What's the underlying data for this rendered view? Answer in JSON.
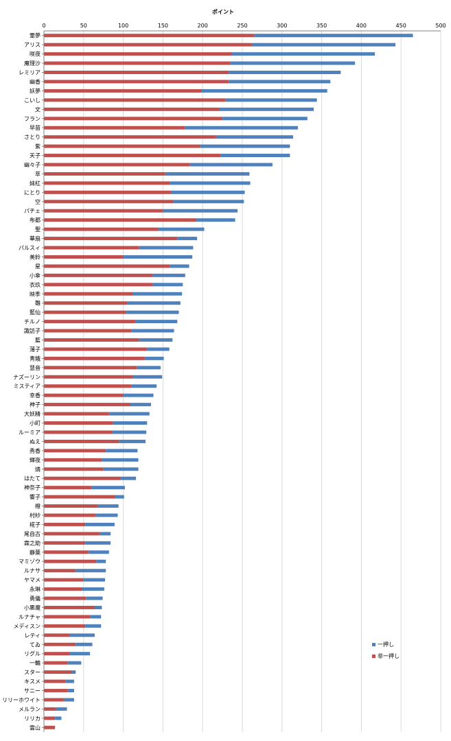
{
  "chart_data": {
    "type": "bar",
    "orientation": "horizontal",
    "stacked": true,
    "title": "ポイント",
    "xlim": [
      0,
      500
    ],
    "xticks": [
      "0",
      "50",
      "100",
      "150",
      "200",
      "250",
      "300",
      "350",
      "400",
      "450",
      "500"
    ],
    "grid": true,
    "legend": "right",
    "categories": [
      "霊夢",
      "アリス",
      "咲夜",
      "魔理沙",
      "レミリア",
      "幽香",
      "妖夢",
      "こいし",
      "文",
      "フラン",
      "早苗",
      "さとり",
      "紫",
      "天子",
      "幽々子",
      "萃",
      "妹紅",
      "にとり",
      "空",
      "パチェ",
      "布都",
      "聖",
      "華扇",
      "パルスィ",
      "美鈴",
      "星",
      "小傘",
      "衣玖",
      "映季",
      "雛",
      "藍仙",
      "チルノ",
      "諏訪子",
      "藍",
      "薄子",
      "青娥",
      "慧音",
      "ナズーリン",
      "ミスティア",
      "幸香",
      "神子",
      "大妖精",
      "小町",
      "ルーミア",
      "ぬえ",
      "秀香",
      "輝夜",
      "燐",
      "はたて",
      "神奈子",
      "響子",
      "橙",
      "村紗",
      "椛子",
      "尾自古",
      "霖之助",
      "静葉",
      "マミゾウ",
      "ルナサ",
      "ヤマメ",
      "永琳",
      "勇儀",
      "小悪魔",
      "ルナチャ",
      "メディスン",
      "レティ",
      "てゐ",
      "リグル",
      "一輪",
      "スター",
      "キスメ",
      "サニー",
      "リリーホワイト",
      "メルラン",
      "リリカ",
      "雲山"
    ],
    "series": [
      {
        "name": "非一押し",
        "color": "#c0504d",
        "values": [
          265,
          262,
          237,
          235,
          233,
          233,
          199,
          229,
          221,
          225,
          178,
          217,
          197,
          223,
          184,
          153,
          159,
          160,
          163,
          150,
          192,
          144,
          168,
          120,
          100,
          159,
          137,
          137,
          112,
          105,
          103,
          115,
          110,
          120,
          130,
          127,
          117,
          112,
          110,
          100,
          109,
          82,
          87,
          86,
          95,
          78,
          73,
          75,
          97,
          60,
          90,
          68,
          65,
          52,
          70,
          52,
          56,
          66,
          40,
          50,
          48,
          53,
          64,
          58,
          52,
          32,
          40,
          32,
          30,
          35,
          27,
          30,
          25,
          15,
          14,
          14
        ]
      },
      {
        "name": "一押し",
        "color": "#4f81bd",
        "values": [
          200,
          181,
          180,
          157,
          141,
          128,
          158,
          115,
          119,
          107,
          142,
          97,
          113,
          87,
          104,
          106,
          101,
          93,
          89,
          94,
          49,
          58,
          25,
          68,
          87,
          24,
          41,
          38,
          62,
          67,
          67,
          53,
          54,
          42,
          28,
          24,
          30,
          37,
          32,
          38,
          26,
          51,
          43,
          43,
          33,
          40,
          46,
          44,
          19,
          42,
          11,
          26,
          28,
          37,
          14,
          32,
          26,
          12,
          38,
          27,
          28,
          21,
          9,
          14,
          20,
          32,
          21,
          26,
          17,
          5,
          11,
          8,
          13,
          14,
          8,
          0
        ]
      }
    ]
  }
}
